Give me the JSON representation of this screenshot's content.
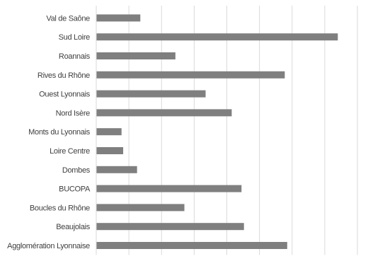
{
  "chart_data": {
    "type": "bar",
    "orientation": "horizontal",
    "categories": [
      "Val de Saône",
      "Sud Loire",
      "Roannais",
      "Rives du Rhône",
      "Ouest Lyonnais",
      "Nord Isère",
      "Monts du Lyonnais",
      "Loire Centre",
      "Dombes",
      "BUCOPA",
      "Boucles du Rhône",
      "Beaujolais",
      "Agglomération Lyonnaise"
    ],
    "values": [
      270,
      1480,
      485,
      1155,
      670,
      830,
      155,
      165,
      250,
      890,
      540,
      905,
      1170
    ],
    "xlim": [
      0,
      1600
    ],
    "xticks": [
      0,
      200,
      400,
      600,
      800,
      1000,
      1200,
      1400,
      1600
    ],
    "grid": "vertical",
    "bar_color": "#7f7f7f",
    "grid_color": "#d9d9d9",
    "title": "",
    "xlabel": "",
    "ylabel": ""
  }
}
